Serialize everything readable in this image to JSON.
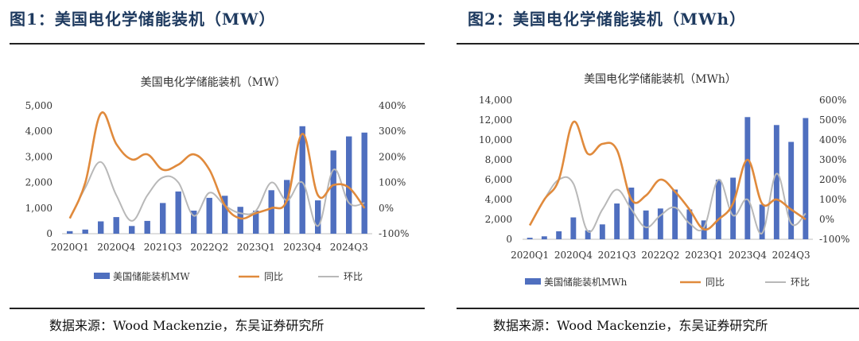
{
  "figures": [
    {
      "heading": "图1：美国电化学储能装机（MW）",
      "source": "数据来源：Wood Mackenzie，东吴证券研究所"
    },
    {
      "heading": "图2：美国电化学储能装机（MWh）",
      "source": "数据来源：Wood Mackenzie，东吴证券研究所"
    }
  ],
  "colors": {
    "bar": "#4f6fbf",
    "yoy": "#e08a3c",
    "qoq": "#b8b8b8"
  },
  "chart_data": [
    {
      "type": "bar",
      "title": "美国电化学储能装机（MW）",
      "categories": [
        "2020Q1",
        "2020Q2",
        "2020Q3",
        "2020Q4",
        "2021Q1",
        "2021Q2",
        "2021Q3",
        "2021Q4",
        "2022Q1",
        "2022Q2",
        "2022Q3",
        "2022Q4",
        "2023Q1",
        "2023Q2",
        "2023Q3",
        "2023Q4",
        "2024Q1",
        "2024Q2",
        "2024Q3",
        "2024Q4"
      ],
      "tick_labels": [
        "2020Q1",
        "2020Q4",
        "2021Q3",
        "2022Q2",
        "2023Q1",
        "2023Q4",
        "2024Q3"
      ],
      "tick_indices": [
        0,
        3,
        6,
        9,
        12,
        15,
        18
      ],
      "y_ticks": [
        "0",
        "1,000",
        "2,000",
        "3,000",
        "4,000",
        "5,000"
      ],
      "y2_ticks": [
        "-100%",
        "0%",
        "100%",
        "200%",
        "300%",
        "400%"
      ],
      "ylim": [
        0,
        5000
      ],
      "y2lim": [
        -100,
        400
      ],
      "legend": [
        "美国储能装机MW",
        "同比",
        "环比"
      ],
      "legend_position": "bottom",
      "series": [
        {
          "name": "美国储能装机MW",
          "kind": "bar",
          "axis": "left",
          "values": [
            100,
            160,
            480,
            650,
            300,
            500,
            1200,
            1650,
            900,
            1400,
            1480,
            1050,
            900,
            1700,
            2100,
            4200,
            1300,
            3250,
            3800,
            3950
          ]
        },
        {
          "name": "同比",
          "kind": "line",
          "axis": "right",
          "values": [
            -40,
            100,
            370,
            250,
            190,
            210,
            150,
            170,
            210,
            150,
            10,
            -40,
            -20,
            0,
            30,
            290,
            50,
            90,
            80,
            0
          ]
        },
        {
          "name": "环比",
          "kind": "line",
          "axis": "right",
          "values": [
            -40,
            80,
            180,
            50,
            -50,
            50,
            120,
            100,
            -30,
            60,
            10,
            -20,
            -10,
            100,
            30,
            100,
            -70,
            150,
            20,
            20
          ]
        }
      ]
    },
    {
      "type": "bar",
      "title": "美国电化学储能装机（MWh）",
      "categories": [
        "2020Q1",
        "2020Q2",
        "2020Q3",
        "2020Q4",
        "2021Q1",
        "2021Q2",
        "2021Q3",
        "2021Q4",
        "2022Q1",
        "2022Q2",
        "2022Q3",
        "2022Q4",
        "2023Q1",
        "2023Q2",
        "2023Q3",
        "2023Q4",
        "2024Q1",
        "2024Q2",
        "2024Q3",
        "2024Q4"
      ],
      "tick_labels": [
        "2020Q1",
        "2020Q4",
        "2021Q3",
        "2022Q2",
        "2023Q1",
        "2023Q4",
        "2024Q3"
      ],
      "tick_indices": [
        0,
        3,
        6,
        9,
        12,
        15,
        18
      ],
      "y_ticks": [
        "0",
        "2,000",
        "4,000",
        "6,000",
        "8,000",
        "10,000",
        "12,000",
        "14,000"
      ],
      "y2_ticks": [
        "-100%",
        "0%",
        "100%",
        "200%",
        "300%",
        "400%",
        "500%",
        "600%"
      ],
      "ylim": [
        0,
        14000
      ],
      "y2lim": [
        -100,
        600
      ],
      "legend": [
        "美国储能装机MWh",
        "同比",
        "环比"
      ],
      "legend_position": "bottom",
      "series": [
        {
          "name": "美国储能装机MWh",
          "kind": "bar",
          "axis": "left",
          "values": [
            150,
            300,
            800,
            2200,
            900,
            1500,
            3600,
            5200,
            2900,
            3100,
            5000,
            3000,
            1900,
            6000,
            6200,
            12300,
            3500,
            11500,
            9800,
            12200
          ]
        },
        {
          "name": "同比",
          "kind": "line",
          "axis": "right",
          "values": [
            -30,
            100,
            200,
            490,
            330,
            380,
            350,
            100,
            120,
            200,
            140,
            50,
            -50,
            0,
            80,
            300,
            80,
            100,
            50,
            0
          ]
        },
        {
          "name": "环比",
          "kind": "line",
          "axis": "right",
          "values": [
            -30,
            100,
            200,
            180,
            -60,
            50,
            150,
            50,
            -40,
            20,
            60,
            -20,
            -40,
            200,
            20,
            100,
            -70,
            230,
            -20,
            30
          ]
        }
      ]
    }
  ]
}
